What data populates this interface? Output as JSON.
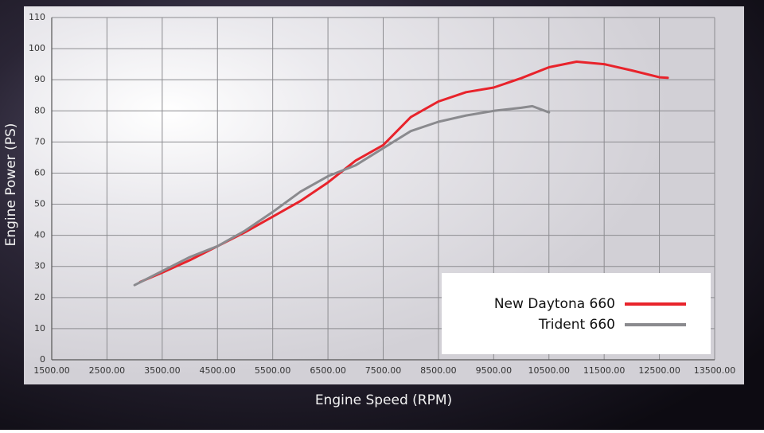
{
  "chart_data": {
    "type": "line",
    "x_label": "Engine Speed (RPM)",
    "y_label": "Engine Power (PS)",
    "xlim": [
      1500,
      13500
    ],
    "xticks": [
      {
        "value": 1500,
        "label": "1500.00"
      },
      {
        "value": 2500,
        "label": "2500.00"
      },
      {
        "value": 3500,
        "label": "3500.00"
      },
      {
        "value": 4500,
        "label": "4500.00"
      },
      {
        "value": 5500,
        "label": "5500.00"
      },
      {
        "value": 6500,
        "label": "6500.00"
      },
      {
        "value": 7500,
        "label": "7500.00"
      },
      {
        "value": 8500,
        "label": "8500.00"
      },
      {
        "value": 9500,
        "label": "9500.00"
      },
      {
        "value": 10500,
        "label": "10500.00"
      },
      {
        "value": 11500,
        "label": "11500.00"
      },
      {
        "value": 12500,
        "label": "12500.00"
      },
      {
        "value": 13500,
        "label": "13500.00"
      }
    ],
    "ylim": [
      0,
      110
    ],
    "yticks": [
      0,
      10,
      20,
      30,
      40,
      50,
      60,
      70,
      80,
      90,
      100,
      110
    ],
    "grid": true,
    "legend": "lower right",
    "series": [
      {
        "name": "New Daytona 660",
        "color": "#e8232b",
        "x": [
          3100,
          3500,
          4000,
          4500,
          5000,
          5500,
          6000,
          6500,
          7000,
          7500,
          8000,
          8500,
          9000,
          9500,
          10000,
          10500,
          11000,
          11500,
          12000,
          12500,
          12650
        ],
        "values": [
          25,
          28,
          32,
          36.5,
          41,
          46,
          51,
          57,
          64,
          69,
          78,
          83,
          86,
          87.5,
          90.5,
          94,
          95.8,
          95,
          93,
          90.8,
          90.6
        ]
      },
      {
        "name": "Trident 660",
        "color": "#8a8a8e",
        "x": [
          3000,
          3500,
          4000,
          4500,
          5000,
          5500,
          6000,
          6500,
          7000,
          7500,
          8000,
          8500,
          9000,
          9500,
          10000,
          10200,
          10500
        ],
        "values": [
          24,
          28.5,
          33,
          36.5,
          41.5,
          47.5,
          54,
          59,
          62.5,
          68,
          73.5,
          76.5,
          78.5,
          80,
          81,
          81.5,
          79.5
        ]
      }
    ]
  }
}
